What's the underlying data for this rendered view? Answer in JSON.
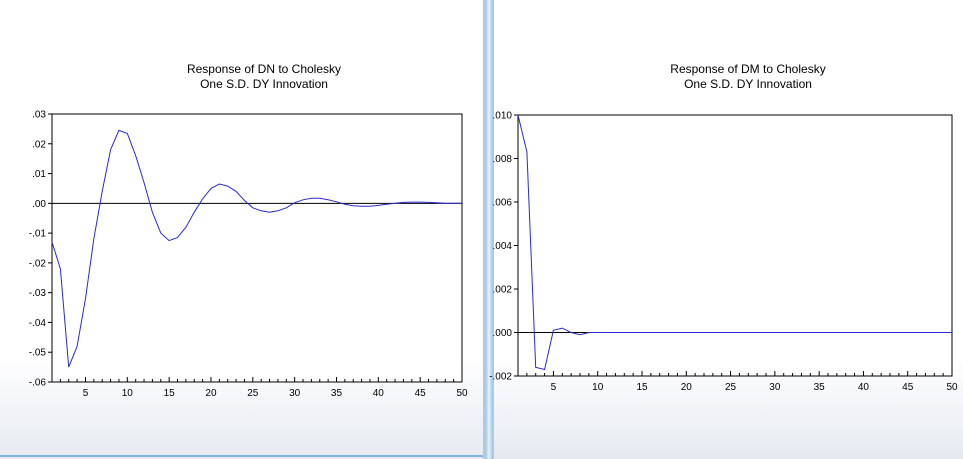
{
  "colors": {
    "series": "#2a2ad4",
    "zero_line": "#000000",
    "frame": "#000000"
  },
  "charts": [
    {
      "title_line1": "Response of DN to Cholesky",
      "title_line2": "One S.D. DY Innovation",
      "y_tick_labels": [
        ".03",
        ".02",
        ".01",
        ".00",
        "-.01",
        "-.02",
        "-.03",
        "-.04",
        "-.05",
        "-.06"
      ],
      "x_tick_labels": [
        "5",
        "10",
        "15",
        "20",
        "25",
        "30",
        "35",
        "40",
        "45",
        "50"
      ]
    },
    {
      "title_line1": "Response of DM to Cholesky",
      "title_line2": "One S.D. DY Innovation",
      "y_tick_labels": [
        ".010",
        ".008",
        ".006",
        ".004",
        ".002",
        ".000",
        "-.002"
      ],
      "x_tick_labels": [
        "5",
        "10",
        "15",
        "20",
        "25",
        "30",
        "35",
        "40",
        "45",
        "50"
      ]
    }
  ],
  "chart_data": [
    {
      "type": "line",
      "title": "Response of DN to Cholesky One S.D. DY Innovation",
      "xlim": [
        1,
        50
      ],
      "ylim": [
        -0.06,
        0.03
      ],
      "zero_line": true,
      "x": [
        1,
        2,
        3,
        4,
        5,
        6,
        7,
        8,
        9,
        10,
        11,
        12,
        13,
        14,
        15,
        16,
        17,
        18,
        19,
        20,
        21,
        22,
        23,
        24,
        25,
        26,
        27,
        28,
        29,
        30,
        31,
        32,
        33,
        34,
        35,
        36,
        37,
        38,
        39,
        40,
        41,
        42,
        43,
        44,
        45,
        46,
        47,
        48,
        49,
        50
      ],
      "series": [
        {
          "values": [
            -0.013,
            -0.022,
            -0.055,
            -0.048,
            -0.032,
            -0.012,
            0.004,
            0.018,
            0.0245,
            0.0235,
            0.016,
            0.007,
            -0.003,
            -0.01,
            -0.0125,
            -0.0115,
            -0.008,
            -0.003,
            0.0015,
            0.005,
            0.0065,
            0.0058,
            0.004,
            0.001,
            -0.0015,
            -0.0025,
            -0.003,
            -0.0025,
            -0.0015,
            0.0002,
            0.0012,
            0.0017,
            0.0017,
            0.0012,
            0.0005,
            -0.0003,
            -0.0008,
            -0.001,
            -0.001,
            -0.0007,
            -0.0003,
            0.0,
            0.0003,
            0.0004,
            0.0004,
            0.0003,
            0.0002,
            0.0,
            0.0,
            0.0
          ]
        }
      ]
    },
    {
      "type": "line",
      "title": "Response of DM to Cholesky One S.D. DY Innovation",
      "xlim": [
        1,
        50
      ],
      "ylim": [
        -0.002,
        0.01
      ],
      "zero_line": true,
      "x": [
        1,
        2,
        3,
        4,
        5,
        6,
        7,
        8,
        9,
        10,
        11,
        12,
        13,
        14,
        15,
        16,
        17,
        18,
        19,
        20,
        21,
        22,
        23,
        24,
        25,
        26,
        27,
        28,
        29,
        30,
        31,
        32,
        33,
        34,
        35,
        36,
        37,
        38,
        39,
        40,
        41,
        42,
        43,
        44,
        45,
        46,
        47,
        48,
        49,
        50
      ],
      "series": [
        {
          "values": [
            0.01,
            0.0083,
            -0.0016,
            -0.0017,
            0.0001,
            0.0002,
            0.0,
            -0.0001,
            0.0,
            0.0,
            0.0,
            0.0,
            0.0,
            0.0,
            0.0,
            0.0,
            0.0,
            0.0,
            0.0,
            0.0,
            0.0,
            0.0,
            0.0,
            0.0,
            0.0,
            0.0,
            0.0,
            0.0,
            0.0,
            0.0,
            0.0,
            0.0,
            0.0,
            0.0,
            0.0,
            0.0,
            0.0,
            0.0,
            0.0,
            0.0,
            0.0,
            0.0,
            0.0,
            0.0,
            0.0,
            0.0,
            0.0,
            0.0,
            0.0,
            0.0
          ]
        }
      ]
    }
  ]
}
